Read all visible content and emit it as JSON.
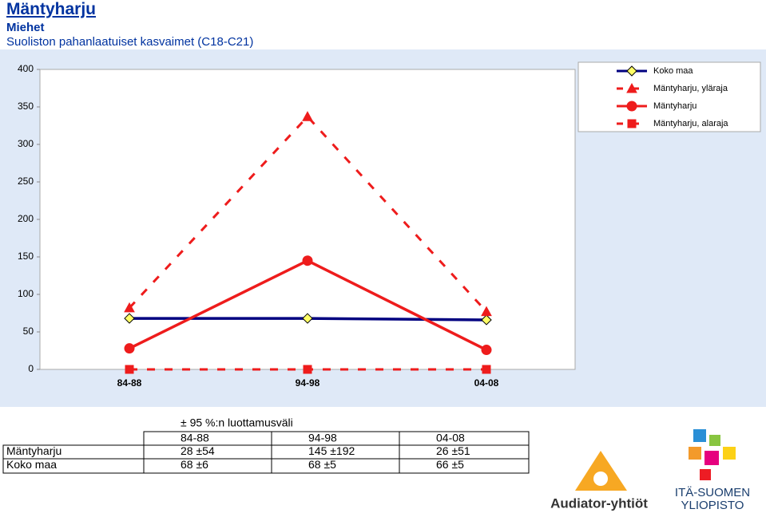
{
  "header": {
    "title": "Mäntyharju",
    "subtitle": "Miehet",
    "description": "Suoliston pahanlaatuiset kasvaimet (C18-C21)"
  },
  "chart_data": {
    "type": "line",
    "categories": [
      "84-88",
      "94-98",
      "04-08"
    ],
    "ylim": [
      0,
      400
    ],
    "yticks": [
      0,
      50,
      100,
      150,
      200,
      250,
      300,
      350,
      400
    ],
    "grid": false,
    "legend": "top-right",
    "series": [
      {
        "name": "Koko maa",
        "color": "#000080",
        "marker": "diamond",
        "dashed": false,
        "values": [
          68,
          68,
          66
        ]
      },
      {
        "name": "Mäntyharju, yläraja",
        "color": "#ee1c1c",
        "marker": "triangle",
        "dashed": true,
        "values": [
          82,
          337,
          77
        ]
      },
      {
        "name": "Mäntyharju",
        "color": "#ee1c1c",
        "marker": "circle",
        "dashed": false,
        "values": [
          28,
          145,
          26
        ]
      },
      {
        "name": "Mäntyharju, alaraja",
        "color": "#ee1c1c",
        "marker": "square",
        "dashed": true,
        "values": [
          0,
          0,
          0
        ]
      }
    ]
  },
  "table": {
    "caption": "± 95 %:n luottamusväli",
    "header": [
      "84-88",
      "94-98",
      "04-08"
    ],
    "rows": [
      {
        "label": "Mäntyharju",
        "cells": [
          "28 ±54",
          "145 ±192",
          "26 ±51"
        ]
      },
      {
        "label": "Koko maa",
        "cells": [
          "68 ±6",
          "68 ±5",
          "66 ±5"
        ]
      }
    ]
  },
  "logos": {
    "left": "Audiator-yhtiöt",
    "right_line1": "ITÄ-SUOMEN",
    "right_line2": "YLIOPISTO"
  }
}
